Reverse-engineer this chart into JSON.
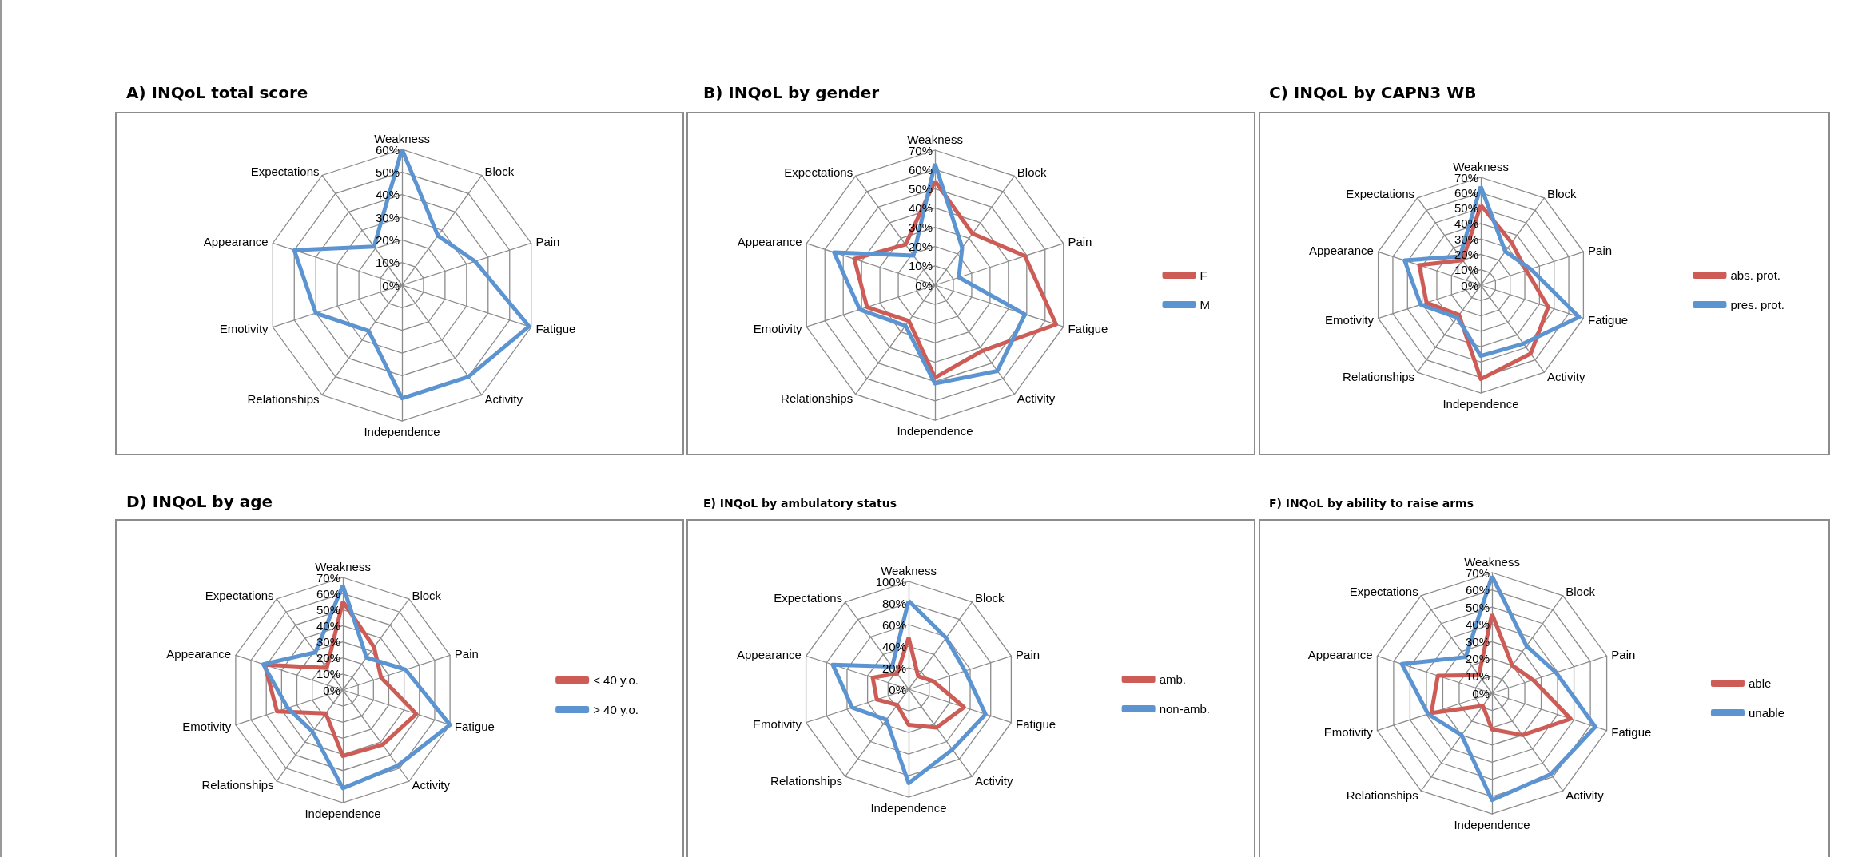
{
  "chart_data": [
    {
      "type": "radar",
      "title": "A) INQoL total score",
      "categories": [
        "Weakness",
        "Block",
        "Pain",
        "Fatigue",
        "Activity",
        "Independence",
        "Relationships",
        "Emotivity",
        "Appearance",
        "Expectations"
      ],
      "series": [
        {
          "color": "#5b94d0",
          "values": [
            60,
            27,
            34,
            59,
            50,
            50,
            25,
            40,
            50,
            21
          ]
        }
      ],
      "ylim": [
        0,
        60
      ],
      "yticks": [
        {
          "value": 0,
          "label": "0%"
        },
        {
          "value": 10,
          "label": "10%"
        },
        {
          "value": 20,
          "label": "20%"
        },
        {
          "value": 30,
          "label": "30%"
        },
        {
          "value": 40,
          "label": "40%"
        },
        {
          "value": 50,
          "label": "50%"
        },
        {
          "value": 60,
          "label": "60%"
        }
      ],
      "marker": "none"
    },
    {
      "type": "radar",
      "title": "B) INQoL by gender",
      "categories": [
        "Weakness",
        "Block",
        "Pain",
        "Fatigue",
        "Activity",
        "Independence",
        "Relationships",
        "Emotivity",
        "Appearance",
        "Expectations"
      ],
      "series": [
        {
          "name": "F",
          "color": "#cd5c57",
          "values": [
            54,
            33,
            49,
            66,
            42,
            48,
            23,
            37,
            44,
            26
          ]
        },
        {
          "name": "M",
          "color": "#5b94d0",
          "values": [
            63,
            24,
            13,
            49,
            55,
            51,
            26,
            41,
            55,
            19
          ]
        }
      ],
      "ylim": [
        0,
        70
      ],
      "yticks": [
        {
          "value": 0,
          "label": "0%"
        },
        {
          "value": 10,
          "label": "10%"
        },
        {
          "value": 20,
          "label": "20%"
        },
        {
          "value": 30,
          "label": "30%"
        },
        {
          "value": 40,
          "label": "40%"
        },
        {
          "value": 50,
          "label": "50%"
        },
        {
          "value": 60,
          "label": "60%"
        },
        {
          "value": 70,
          "label": "70%"
        }
      ],
      "legend": "right",
      "marker": "none"
    },
    {
      "type": "radar",
      "title": "C) INQoL by CAPN3 WB",
      "categories": [
        "Weakness",
        "Block",
        "Pain",
        "Fatigue",
        "Activity",
        "Independence",
        "Relationships",
        "Emotivity",
        "Appearance",
        "Expectations"
      ],
      "series": [
        {
          "name": "abs. prot.",
          "color": "#cd5c57",
          "values": [
            52,
            34,
            31,
            46,
            55,
            61,
            24,
            37,
            42,
            20
          ]
        },
        {
          "name": "pres. prot.",
          "color": "#5b94d0",
          "values": [
            64,
            27,
            34,
            67,
            47,
            46,
            26,
            41,
            52,
            23
          ]
        }
      ],
      "ylim": [
        0,
        70
      ],
      "yticks": [
        {
          "value": 0,
          "label": "0%"
        },
        {
          "value": 10,
          "label": "10%"
        },
        {
          "value": 20,
          "label": "20%"
        },
        {
          "value": 30,
          "label": "30%"
        },
        {
          "value": 40,
          "label": "40%"
        },
        {
          "value": 50,
          "label": "50%"
        },
        {
          "value": 60,
          "label": "60%"
        },
        {
          "value": 70,
          "label": "70%"
        }
      ],
      "legend": "right",
      "marker": "none"
    },
    {
      "type": "radar",
      "title": "D) INQoL by age",
      "categories": [
        "Weakness",
        "Block",
        "Pain",
        "Fatigue",
        "Activity",
        "Independence",
        "Relationships",
        "Emotivity",
        "Appearance",
        "Expectations"
      ],
      "series": [
        {
          "name": "< 40 y.o.",
          "color": "#cd5c57",
          "values": [
            55,
            33,
            25,
            48,
            42,
            41,
            18,
            43,
            51,
            17
          ]
        },
        {
          "name": "> 40 y.o.",
          "color": "#5b94d0",
          "values": [
            65,
            25,
            41,
            70,
            58,
            61,
            32,
            36,
            52,
            29
          ]
        }
      ],
      "ylim": [
        0,
        70
      ],
      "yticks": [
        {
          "value": 0,
          "label": "0%"
        },
        {
          "value": 10,
          "label": "10%"
        },
        {
          "value": 20,
          "label": "20%"
        },
        {
          "value": 30,
          "label": "30%"
        },
        {
          "value": 40,
          "label": "40%"
        },
        {
          "value": 50,
          "label": "50%"
        },
        {
          "value": 60,
          "label": "60%"
        },
        {
          "value": 70,
          "label": "70%"
        }
      ],
      "legend": "right",
      "marker": "none"
    },
    {
      "type": "radar",
      "title": "E) INQoL by ambulatory status",
      "categories": [
        "Weakness",
        "Block",
        "Pain",
        "Fatigue",
        "Activity",
        "Independence",
        "Relationships",
        "Emotivity",
        "Appearance",
        "Expectations"
      ],
      "series": [
        {
          "name": "amb.",
          "color": "#cd5c57",
          "values": [
            48,
            15,
            24,
            54,
            44,
            33,
            18,
            31,
            35,
            18
          ]
        },
        {
          "name": "non-amb.",
          "color": "#5b94d0",
          "values": [
            82,
            59,
            55,
            75,
            69,
            87,
            35,
            55,
            74,
            26
          ]
        }
      ],
      "ylim": [
        0,
        100
      ],
      "yticks": [
        {
          "value": 0,
          "label": "0%"
        },
        {
          "value": 20,
          "label": "20%"
        },
        {
          "value": 40,
          "label": "40%"
        },
        {
          "value": 60,
          "label": "60%"
        },
        {
          "value": 80,
          "label": "80%"
        },
        {
          "value": 100,
          "label": "100%"
        }
      ],
      "legend": "right",
      "marker": "none"
    },
    {
      "type": "radar",
      "title": "F) INQoL by ability to raise arms",
      "categories": [
        "Weakness",
        "Block",
        "Pain",
        "Fatigue",
        "Activity",
        "Independence",
        "Relationships",
        "Emotivity",
        "Appearance",
        "Expectations"
      ],
      "series": [
        {
          "name": "able",
          "color": "#cd5c57",
          "values": [
            46,
            20,
            25,
            48,
            30,
            21,
            9,
            37,
            33,
            13
          ]
        },
        {
          "name": "unable",
          "color": "#5b94d0",
          "values": [
            68,
            34,
            39,
            63,
            58,
            62,
            30,
            39,
            55,
            26
          ]
        }
      ],
      "ylim": [
        0,
        70
      ],
      "yticks": [
        {
          "value": 0,
          "label": "0%"
        },
        {
          "value": 10,
          "label": "10%"
        },
        {
          "value": 20,
          "label": "20%"
        },
        {
          "value": 30,
          "label": "30%"
        },
        {
          "value": 40,
          "label": "40%"
        },
        {
          "value": 50,
          "label": "50%"
        },
        {
          "value": 60,
          "label": "60%"
        },
        {
          "value": 70,
          "label": "70%"
        }
      ],
      "legend": "right",
      "marker": "none"
    }
  ]
}
